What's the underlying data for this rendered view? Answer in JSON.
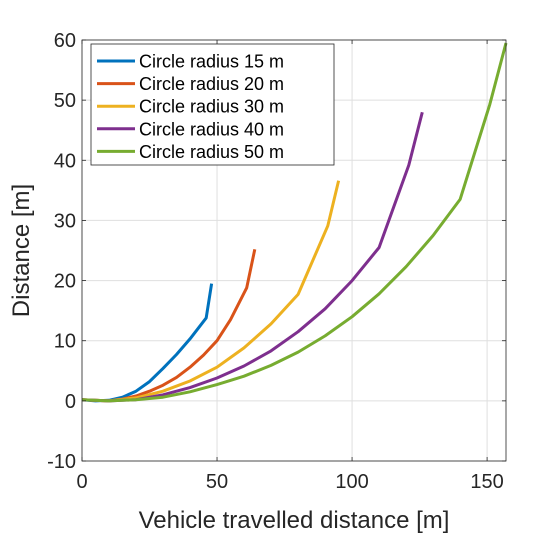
{
  "chart_data": {
    "type": "line",
    "xlabel": "Vehicle travelled distance [m]",
    "ylabel": "Distance [m]",
    "xlim": [
      0,
      157
    ],
    "ylim": [
      -10,
      60
    ],
    "xticks": [
      0,
      50,
      100,
      150
    ],
    "yticks": [
      -10,
      0,
      10,
      20,
      30,
      40,
      50,
      60
    ],
    "grid": true,
    "legend_position": "top-left",
    "series": [
      {
        "name": "Circle radius 15 m",
        "color": "#0072BD",
        "x": [
          0,
          5,
          10,
          15,
          20,
          25,
          30,
          35,
          40,
          46,
          48
        ],
        "y": [
          0.2,
          0,
          0.1,
          0.6,
          1.6,
          3.2,
          5.4,
          7.7,
          10.3,
          13.8,
          19.5
        ]
      },
      {
        "name": "Circle radius 20 m",
        "color": "#D95319",
        "x": [
          0,
          10,
          15,
          20,
          25,
          30,
          35,
          40,
          45,
          50,
          55,
          61,
          64
        ],
        "y": [
          0.2,
          0,
          0.3,
          0.8,
          1.6,
          2.6,
          3.9,
          5.6,
          7.6,
          10.0,
          13.5,
          18.8,
          25.2
        ]
      },
      {
        "name": "Circle radius 30 m",
        "color": "#EDB120",
        "x": [
          0,
          10,
          20,
          30,
          40,
          50,
          60,
          70,
          80,
          91,
          95
        ],
        "y": [
          0.2,
          0,
          0.5,
          1.6,
          3.3,
          5.6,
          8.8,
          12.8,
          17.7,
          29.1,
          36.6
        ]
      },
      {
        "name": "Circle radius 40 m",
        "color": "#7E2F8E",
        "x": [
          0,
          10,
          20,
          30,
          40,
          50,
          60,
          70,
          80,
          90,
          100,
          110,
          121,
          126
        ],
        "y": [
          0.2,
          0,
          0.2,
          1.0,
          2.2,
          3.8,
          5.8,
          8.3,
          11.5,
          15.3,
          20.0,
          25.5,
          39.2,
          48.0
        ]
      },
      {
        "name": "Circle radius 50 m",
        "color": "#77AC30",
        "x": [
          0,
          10,
          20,
          30,
          40,
          50,
          60,
          70,
          80,
          90,
          100,
          110,
          120,
          130,
          140,
          151,
          157
        ],
        "y": [
          0.2,
          0,
          0.2,
          0.6,
          1.5,
          2.7,
          4.1,
          5.9,
          8.1,
          10.8,
          14.0,
          17.8,
          22.3,
          27.5,
          33.5,
          49.3,
          59.5
        ]
      }
    ]
  }
}
